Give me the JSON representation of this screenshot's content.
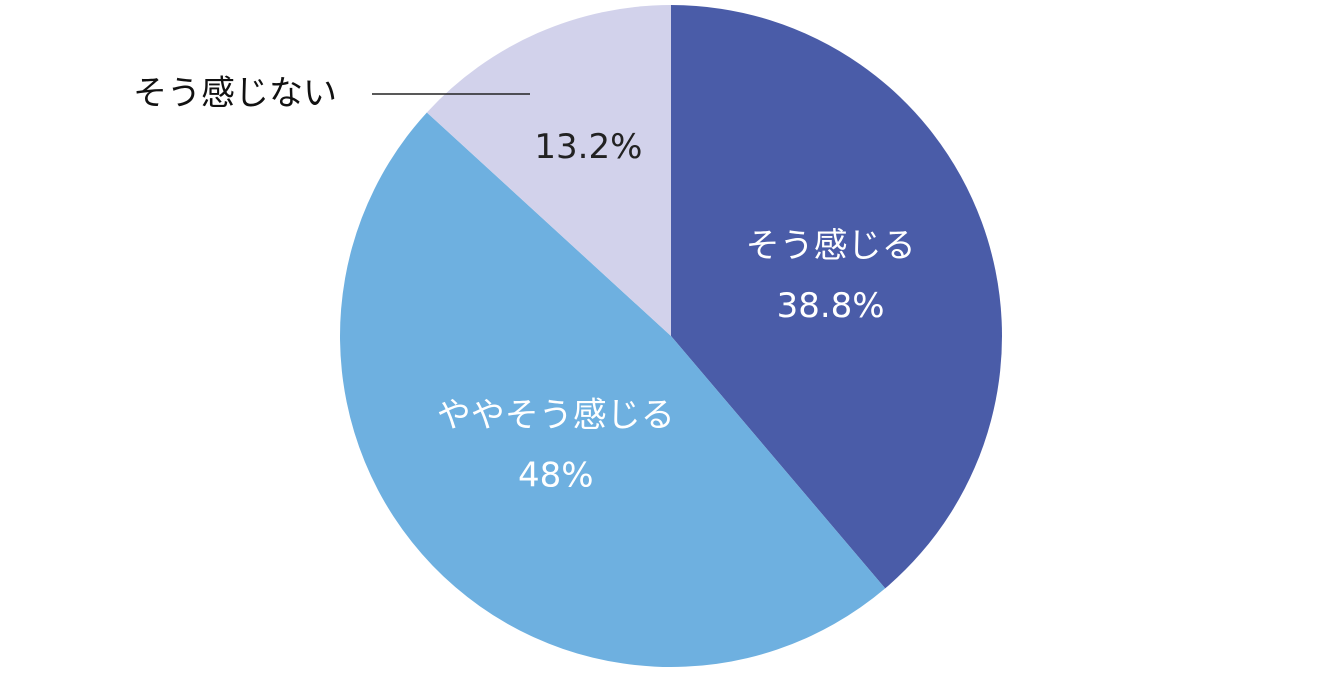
{
  "chart_data": {
    "type": "pie",
    "categories": [
      "そう感じる",
      "ややそう感じる",
      "そう感じない"
    ],
    "values": [
      38.8,
      48,
      13.2
    ],
    "value_labels": [
      "38.8%",
      "48%",
      "13.2%"
    ],
    "colors": [
      "#4a5ca8",
      "#6eb0e0",
      "#d2d2eb"
    ]
  }
}
